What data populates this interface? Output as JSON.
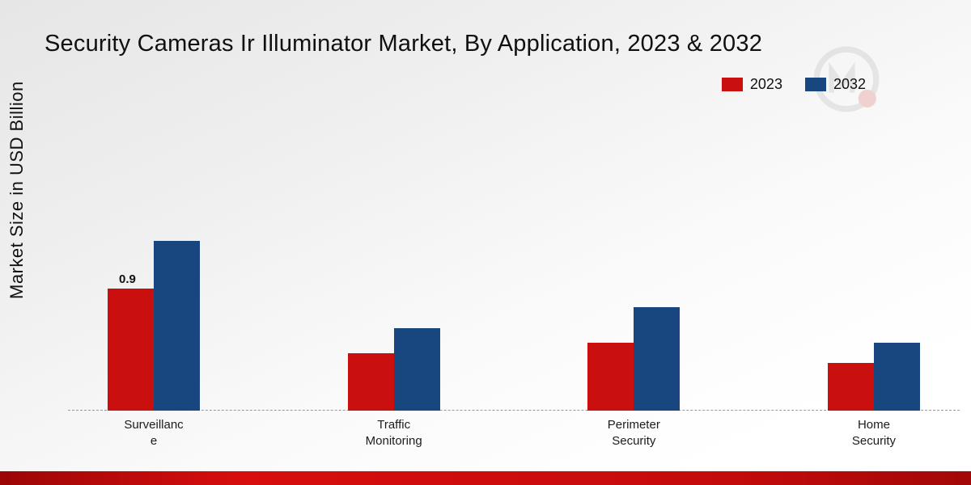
{
  "title": "Security Cameras Ir Illuminator Market, By Application, 2023 & 2032",
  "ylabel": "Market Size in USD Billion",
  "legend": [
    {
      "label": "2023",
      "color": "#c9100f"
    },
    {
      "label": "2032",
      "color": "#17477e"
    }
  ],
  "colors": {
    "series_2023": "#c9100f",
    "series_2032": "#17477e",
    "footer_band": "#c40b0b"
  },
  "chart_data": {
    "type": "bar",
    "categories": [
      "Surveillance",
      "Traffic Monitoring",
      "Perimeter Security",
      "Home Security"
    ],
    "category_label_lines": [
      [
        "Surveillanc",
        "e"
      ],
      [
        "Traffic",
        "Monitoring"
      ],
      [
        "Perimeter",
        "Security"
      ],
      [
        "Home",
        "Security"
      ]
    ],
    "series": [
      {
        "name": "2023",
        "color": "#c9100f",
        "values": [
          0.9,
          0.42,
          0.5,
          0.35
        ]
      },
      {
        "name": "2032",
        "color": "#17477e",
        "values": [
          1.25,
          0.61,
          0.76,
          0.5
        ]
      }
    ],
    "annotations": [
      {
        "category_index": 0,
        "series_index": 0,
        "text": "0.9"
      }
    ],
    "title": "Security Cameras Ir Illuminator Market, By Application, 2023 & 2032",
    "xlabel": "",
    "ylabel": "Market Size in USD Billion",
    "ylim": [
      0,
      2.26
    ],
    "grid": false,
    "legend_position": "top-right"
  }
}
